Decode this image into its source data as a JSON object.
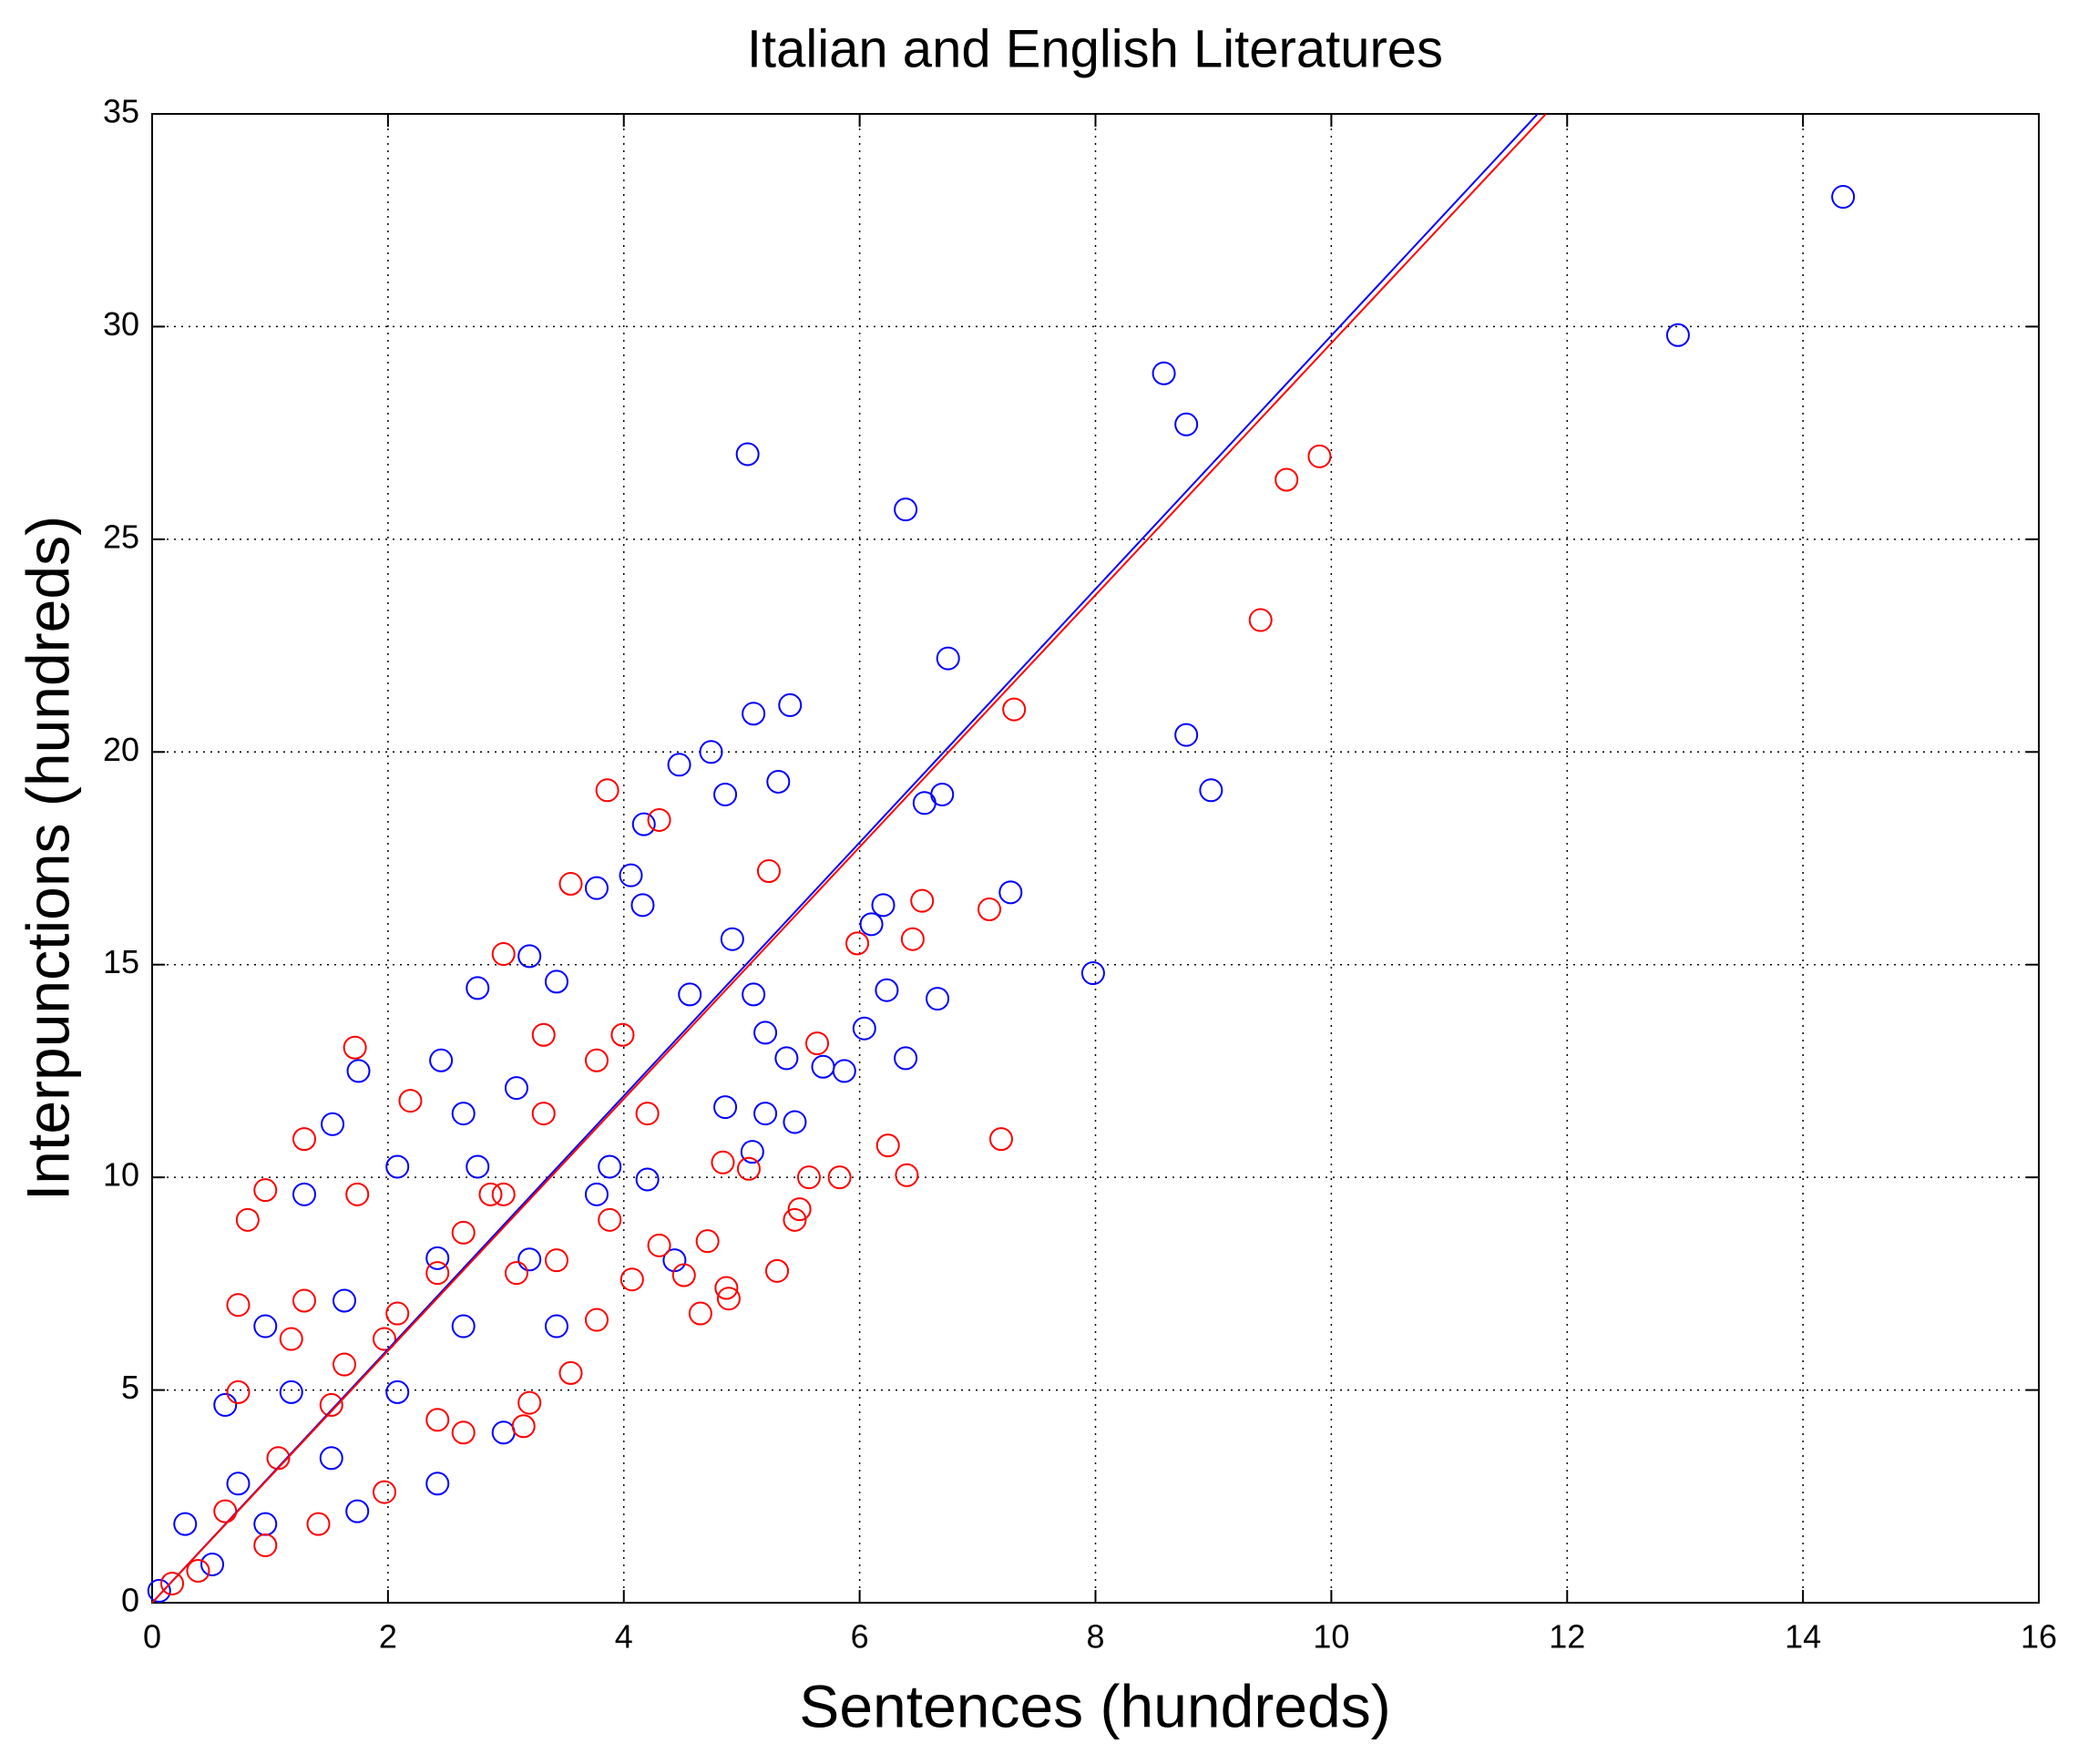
{
  "chart_data": {
    "type": "scatter",
    "title": "Italian and English Literatures",
    "x_label": "Sentences (hundreds)",
    "y_label": "Interpunctions (hundreds)",
    "xlim": [
      0,
      16
    ],
    "ylim": [
      0,
      35
    ],
    "xticks": [
      0,
      2,
      4,
      6,
      8,
      10,
      12,
      14,
      16
    ],
    "yticks": [
      0,
      5,
      10,
      15,
      20,
      25,
      30,
      35
    ],
    "grid": true,
    "series": [
      {
        "color": "#0000ff",
        "x": [
          14.34,
          12.94,
          8.58,
          8.77,
          5.05,
          6.39,
          6.75,
          8.77,
          8.98,
          5.1,
          5.41,
          4.74,
          4.47,
          5.31,
          4.86,
          6.55,
          6.7,
          4.17,
          7.28,
          6.2,
          6.1,
          4.06,
          4.16,
          7.98,
          4.92,
          5.1,
          6.66,
          6.23,
          6.39,
          5.87,
          5.69,
          5.38,
          5.2,
          5.45,
          5.2,
          4.86,
          5.09,
          6.04,
          4.56,
          1.75,
          1.53,
          2.76,
          2.45,
          3.2,
          3.77,
          3.43,
          2.08,
          1.29,
          0.96,
          0.62,
          0.28,
          0.06,
          1.52,
          2.08,
          2.64,
          3.2,
          3.77,
          3.43,
          2.98,
          2.42,
          1.74,
          0.96,
          0.51,
          0.73,
          1.18,
          1.63,
          2.42,
          2.76,
          3.88,
          4.2,
          4.43,
          2.64,
          3.09
        ],
        "values": [
          33.05,
          29.8,
          28.9,
          27.7,
          27.0,
          25.7,
          22.2,
          20.4,
          19.1,
          20.9,
          21.1,
          20.0,
          19.7,
          19.3,
          19.0,
          18.8,
          19.0,
          18.3,
          16.7,
          16.4,
          15.95,
          17.1,
          16.4,
          14.8,
          15.6,
          14.3,
          14.2,
          14.4,
          12.8,
          12.5,
          12.6,
          12.8,
          13.4,
          11.3,
          11.5,
          11.65,
          10.6,
          13.5,
          14.3,
          12.5,
          11.25,
          14.45,
          12.75,
          15.2,
          16.8,
          14.6,
          10.25,
          9.6,
          6.5,
          4.65,
          1.85,
          0.28,
          3.4,
          4.95,
          6.5,
          8.07,
          9.6,
          6.5,
          4.0,
          2.8,
          2.15,
          1.85,
          0.9,
          2.8,
          4.95,
          7.1,
          8.1,
          10.25,
          10.25,
          9.95,
          8.05,
          11.5,
          12.1
        ]
      },
      {
        "color": "#ff0000",
        "x": [
          9.9,
          9.62,
          9.4,
          7.31,
          7.2,
          7.1,
          6.53,
          6.45,
          5.98,
          5.64,
          5.23,
          3.86,
          4.3,
          6.24,
          6.4,
          5.83,
          5.57,
          5.49,
          5.45,
          5.3,
          5.06,
          4.84,
          4.89,
          4.87,
          4.65,
          4.71,
          4.51,
          4.3,
          4.07,
          3.77,
          3.55,
          2.98,
          1.72,
          1.29,
          0.81,
          0.96,
          0.73,
          2.64,
          3.2,
          3.55,
          3.15,
          2.42,
          1.97,
          1.41,
          0.96,
          0.39,
          0.17,
          0.62,
          1.07,
          1.52,
          1.97,
          2.42,
          2.87,
          3.32,
          3.77,
          4.2,
          3.99,
          3.32,
          2.19,
          1.74,
          1.29,
          0.73,
          1.18,
          1.63,
          2.08,
          2.64,
          3.09,
          2.98,
          3.43,
          3.88
        ],
        "values": [
          26.95,
          26.4,
          23.1,
          21.0,
          10.9,
          16.3,
          16.5,
          15.6,
          15.5,
          13.15,
          17.2,
          19.1,
          18.4,
          10.75,
          10.05,
          10.0,
          10.0,
          9.25,
          9.0,
          7.8,
          10.2,
          10.35,
          7.15,
          7.4,
          6.8,
          8.5,
          7.7,
          8.4,
          7.6,
          6.65,
          16.9,
          15.25,
          13.05,
          10.9,
          9.0,
          9.7,
          7.0,
          4.0,
          4.7,
          5.4,
          4.15,
          4.3,
          2.6,
          1.85,
          1.35,
          0.75,
          0.45,
          2.15,
          3.4,
          4.65,
          6.2,
          7.75,
          9.6,
          11.5,
          12.75,
          11.5,
          13.35,
          13.35,
          11.8,
          9.6,
          7.1,
          4.95,
          6.2,
          5.6,
          6.8,
          8.7,
          7.75,
          9.6,
          8.05,
          9.0
        ]
      }
    ],
    "fit_lines": [
      {
        "color": "#0000ff",
        "x": [
          0,
          11.75
        ],
        "values": [
          0,
          35
        ]
      },
      {
        "color": "#ff0000",
        "x": [
          0,
          11.82
        ],
        "values": [
          0,
          35
        ]
      }
    ]
  }
}
